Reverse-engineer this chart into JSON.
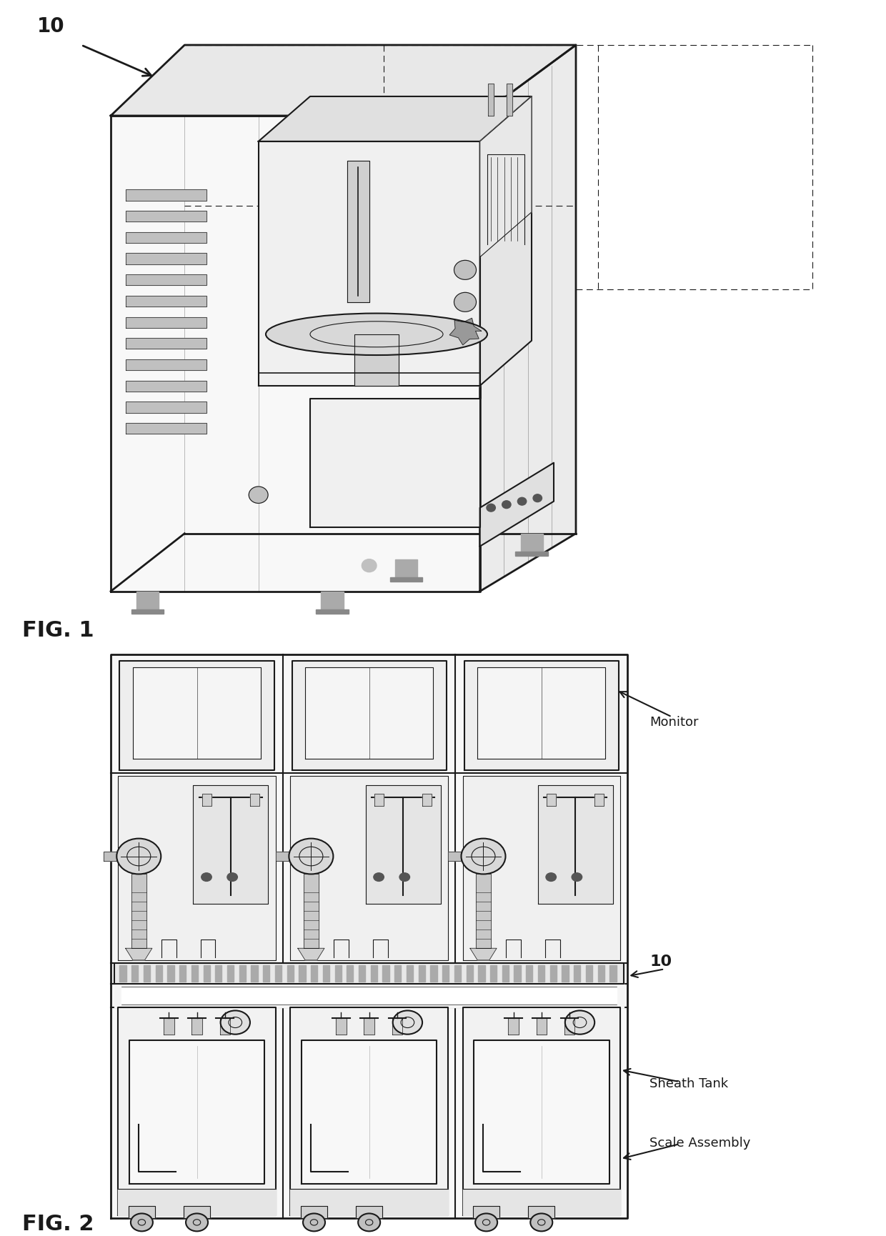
{
  "fig1_label": "FIG. 1",
  "fig2_label": "FIG. 2",
  "label_10_fig1": "10",
  "label_10_fig2": "10",
  "label_monitor": "Monitor",
  "label_sheath_tank": "Sheath Tank",
  "label_scale_assembly": "Scale Assembly",
  "bg_color": "#ffffff",
  "line_color": "#1a1a1a",
  "fill_white": "#ffffff",
  "fill_light": "#f0f0f0",
  "fill_medium": "#d8d8d8",
  "fill_dark": "#b0b0b0"
}
